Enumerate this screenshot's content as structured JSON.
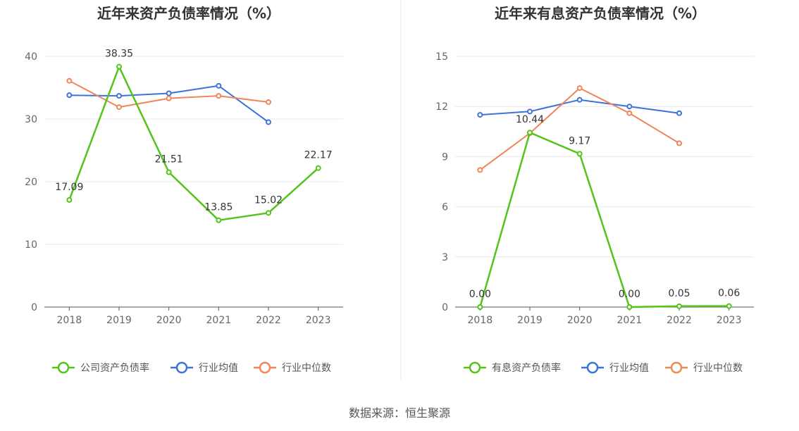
{
  "source_text": "数据来源：恒生聚源",
  "chart_data": [
    {
      "type": "line",
      "title": "近年来资产负债率情况（%）",
      "categories": [
        "2018",
        "2019",
        "2020",
        "2021",
        "2022",
        "2023"
      ],
      "ylim": [
        0,
        40
      ],
      "yticks": [
        "0",
        "10",
        "20",
        "30",
        "40"
      ],
      "grid": true,
      "legend_position": "bottom",
      "series": [
        {
          "name": "公司资产负债率",
          "color": "#52c41a",
          "values": [
            17.09,
            38.35,
            21.51,
            13.85,
            15.02,
            22.17
          ],
          "labels": [
            "17.09",
            "38.35",
            "21.51",
            "13.85",
            "15.02",
            "22.17"
          ]
        },
        {
          "name": "行业均值",
          "color": "#3a73d9",
          "values": [
            33.8,
            33.7,
            34.1,
            35.3,
            29.5,
            null
          ]
        },
        {
          "name": "行业中位数",
          "color": "#f0855a",
          "values": [
            36.1,
            31.9,
            33.3,
            33.7,
            32.7,
            null
          ]
        }
      ]
    },
    {
      "type": "line",
      "title": "近年来有息资产负债率情况（%）",
      "categories": [
        "2018",
        "2019",
        "2020",
        "2021",
        "2022",
        "2023"
      ],
      "ylim": [
        0,
        15
      ],
      "yticks": [
        "0",
        "3",
        "6",
        "9",
        "12",
        "15"
      ],
      "grid": true,
      "legend_position": "bottom",
      "series": [
        {
          "name": "有息资产负债率",
          "color": "#52c41a",
          "values": [
            0.0,
            10.44,
            9.17,
            0.0,
            0.05,
            0.06
          ],
          "labels": [
            "0.00",
            "10.44",
            "9.17",
            "0.00",
            "0.05",
            "0.06"
          ]
        },
        {
          "name": "行业均值",
          "color": "#3a73d9",
          "values": [
            11.5,
            11.7,
            12.4,
            12.0,
            11.6,
            null
          ]
        },
        {
          "name": "行业中位数",
          "color": "#f0855a",
          "values": [
            8.2,
            10.4,
            13.1,
            11.6,
            9.8,
            null
          ]
        }
      ]
    }
  ]
}
